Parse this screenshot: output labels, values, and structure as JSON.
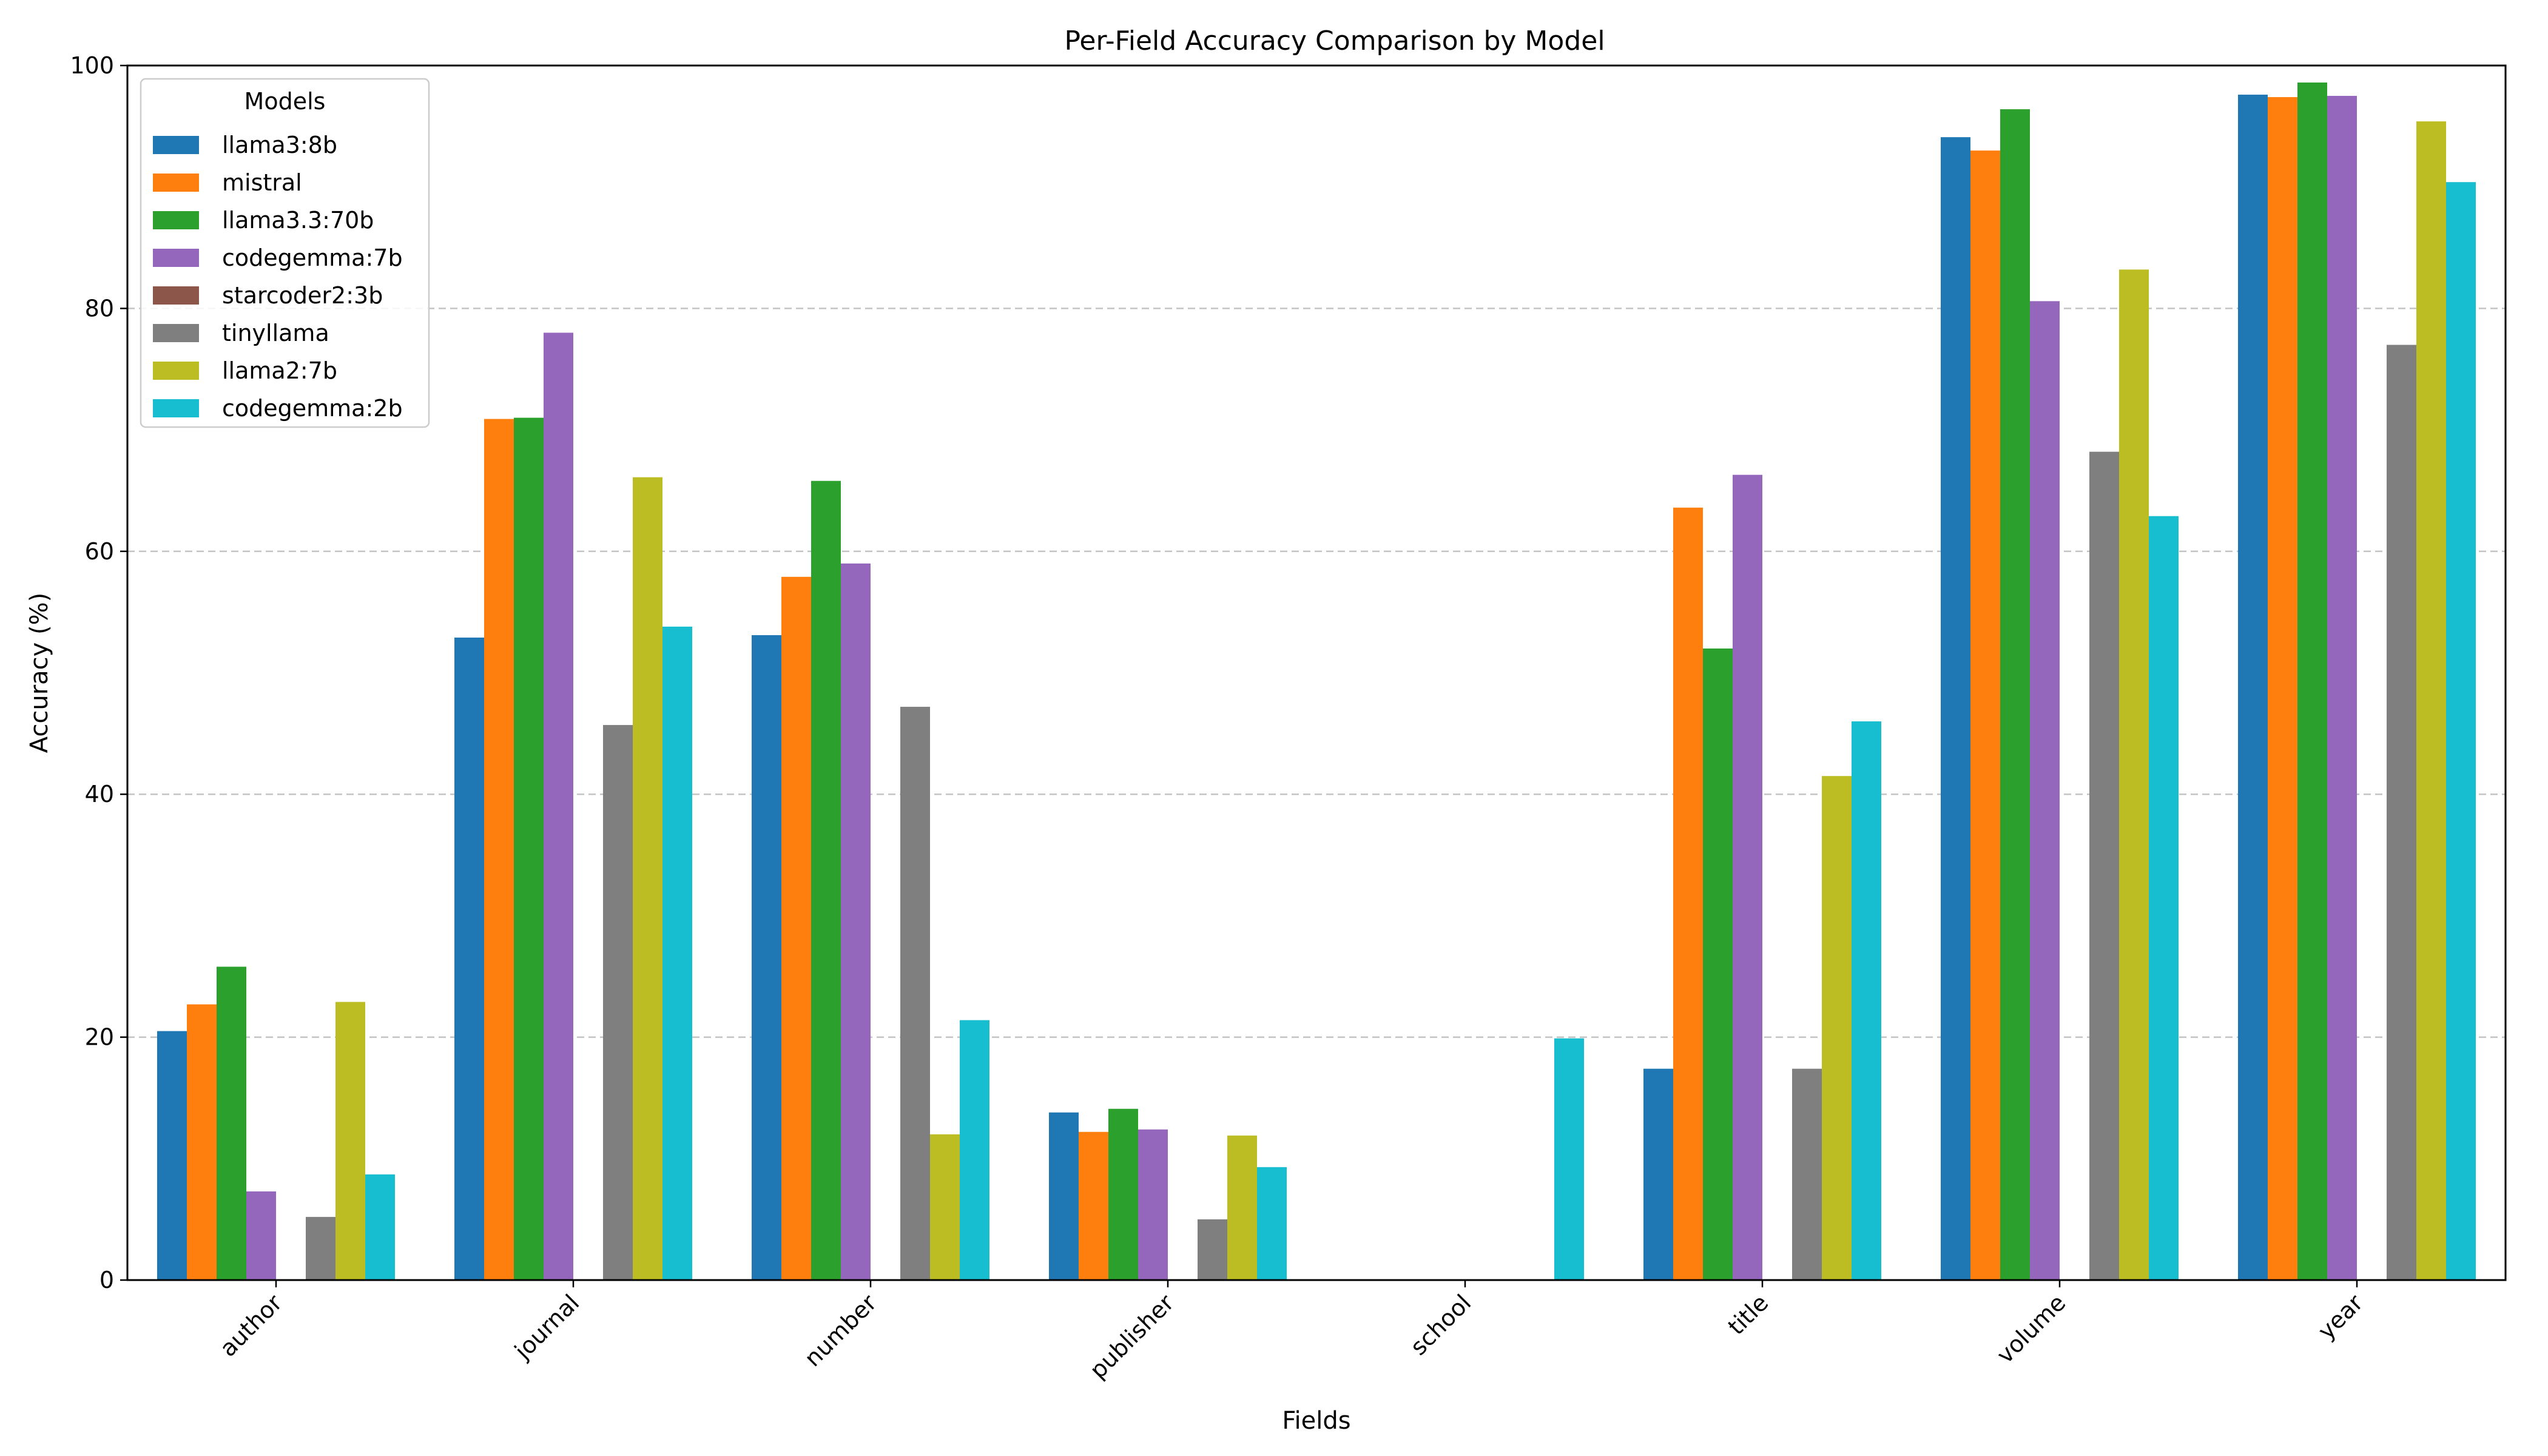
{
  "chart_data": {
    "type": "bar",
    "title": "Per-Field Accuracy Comparison by Model",
    "xlabel": "Fields",
    "ylabel": "Accuracy (%)",
    "ylim": [
      0,
      100
    ],
    "yticks": [
      0,
      20,
      40,
      60,
      80,
      100
    ],
    "grid": "y-dashed",
    "legend": {
      "title": "Models",
      "position": "top-left"
    },
    "categories": [
      "author",
      "journal",
      "number",
      "publisher",
      "school",
      "title",
      "volume",
      "year"
    ],
    "series": [
      {
        "name": "llama3:8b",
        "color": "#1f77b4",
        "values": [
          20.5,
          52.9,
          53.1,
          13.8,
          0,
          17.4,
          94.1,
          97.6
        ]
      },
      {
        "name": "mistral",
        "color": "#ff7f0e",
        "values": [
          22.7,
          70.9,
          57.9,
          12.2,
          0,
          63.6,
          93.0,
          97.4
        ]
      },
      {
        "name": "llama3.3:70b",
        "color": "#2ca02c",
        "values": [
          25.8,
          71.0,
          65.8,
          14.1,
          0,
          52.0,
          96.4,
          98.6
        ]
      },
      {
        "name": "codegemma:7b",
        "color": "#9467bd",
        "values": [
          7.3,
          78.0,
          59.0,
          12.4,
          0,
          66.3,
          80.6,
          97.5
        ]
      },
      {
        "name": "starcoder2:3b",
        "color": "#8c564b",
        "values": [
          0,
          0,
          0,
          0,
          0,
          0,
          0,
          0
        ]
      },
      {
        "name": "tinyllama",
        "color": "#7f7f7f",
        "values": [
          5.2,
          45.7,
          47.2,
          5.0,
          0,
          17.4,
          68.2,
          77.0
        ]
      },
      {
        "name": "llama2:7b",
        "color": "#bcbd22",
        "values": [
          22.9,
          66.1,
          12.0,
          11.9,
          0,
          41.5,
          83.2,
          95.4
        ]
      },
      {
        "name": "codegemma:2b",
        "color": "#17becf",
        "values": [
          8.7,
          53.8,
          21.4,
          9.3,
          19.9,
          46.0,
          62.9,
          90.4
        ]
      }
    ]
  }
}
